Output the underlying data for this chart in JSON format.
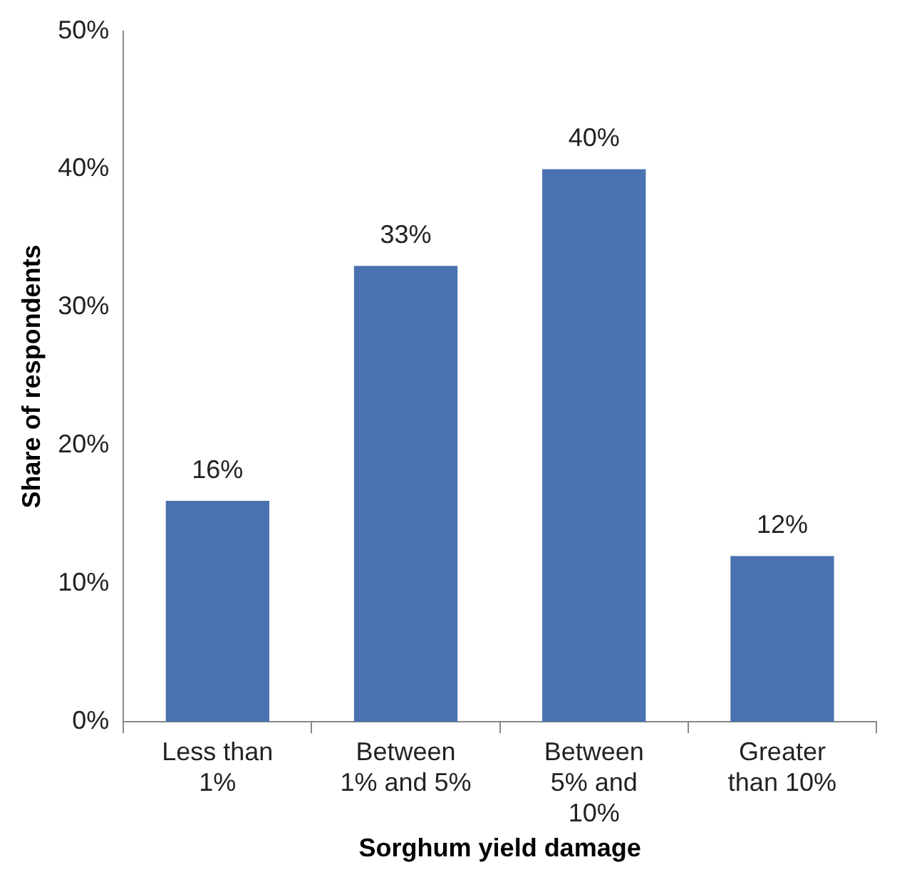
{
  "chart_data": {
    "type": "bar",
    "xlabel": "Sorghum yield damage",
    "ylabel": "Share of respondents",
    "categories": [
      "Less than 1%",
      "Between 1% and 5%",
      "Between 5% and 10%",
      "Greater than 10%"
    ],
    "values": [
      16,
      33,
      40,
      12
    ],
    "value_labels": [
      "16%",
      "33%",
      "40%",
      "12%"
    ],
    "color": "#4a72b0",
    "grid": false,
    "legend": false,
    "ylim": [
      0,
      50
    ],
    "yticks": [
      {
        "value": 0,
        "label": "0%"
      },
      {
        "value": 10,
        "label": "10%"
      },
      {
        "value": 20,
        "label": "20%"
      },
      {
        "value": 30,
        "label": "30%"
      },
      {
        "value": 40,
        "label": "40%"
      },
      {
        "value": 50,
        "label": "50%"
      }
    ]
  }
}
